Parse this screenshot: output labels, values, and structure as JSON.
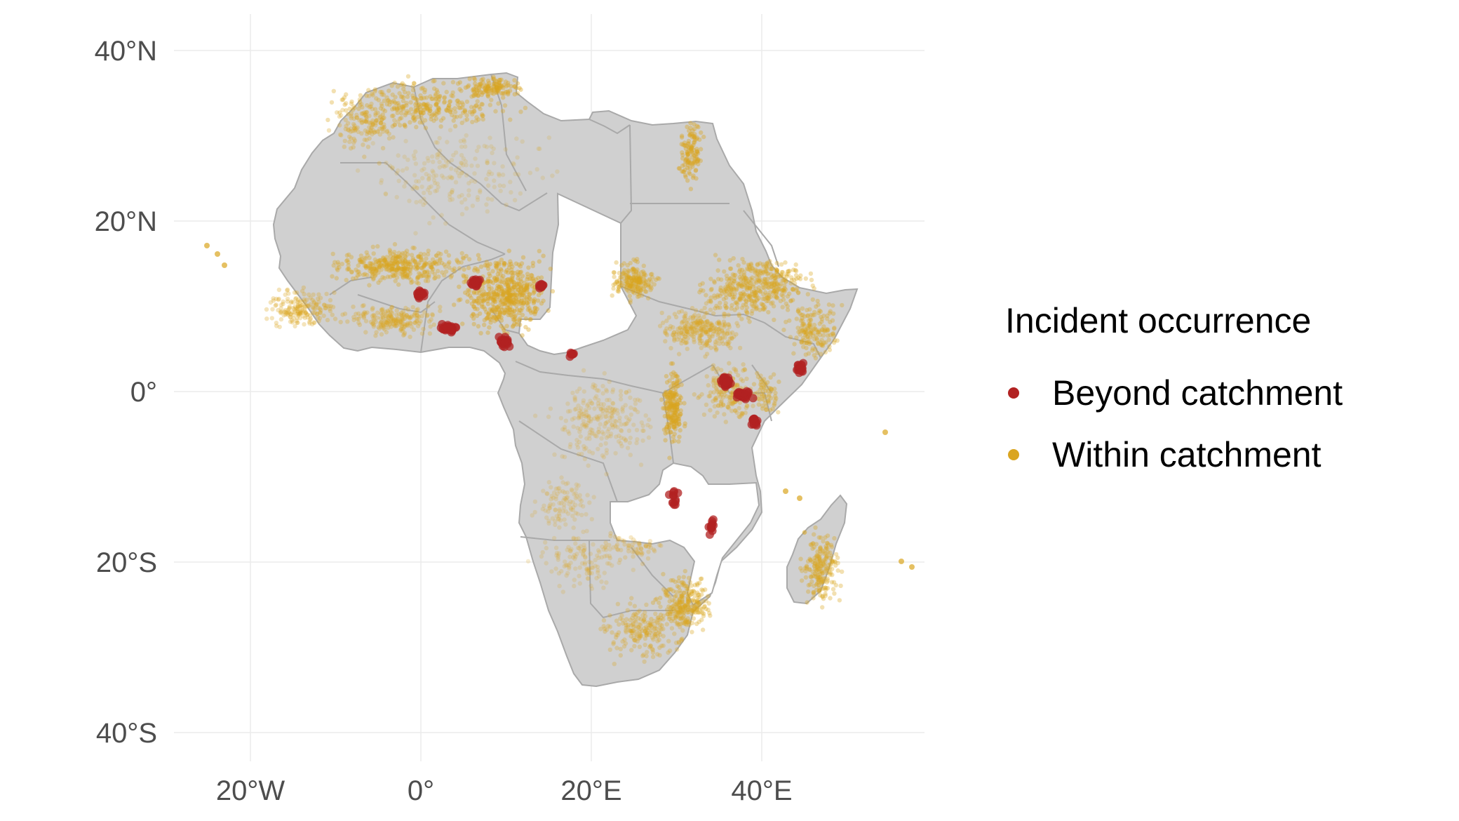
{
  "map": {
    "x_ticks": [
      "20°W",
      "0°",
      "20°E",
      "40°E"
    ],
    "y_ticks": [
      "40°N",
      "20°N",
      "0°",
      "20°S",
      "40°S"
    ],
    "x_range_deg": [
      -28,
      59
    ],
    "y_range_deg": [
      -44,
      42
    ],
    "land_color": "#d0d0d0",
    "border_color": "#a9a9a9",
    "grid": true,
    "unshaded_regions": [
      "Chad",
      "Central African Republic",
      "Zambia",
      "Malawi",
      "Mozambique"
    ]
  },
  "legend": {
    "title": "Incident occurrence",
    "placement": "right",
    "items": [
      {
        "label": "Beyond catchment",
        "color": "#b22222"
      },
      {
        "label": "Within catchment",
        "color": "#daa520"
      }
    ]
  }
}
